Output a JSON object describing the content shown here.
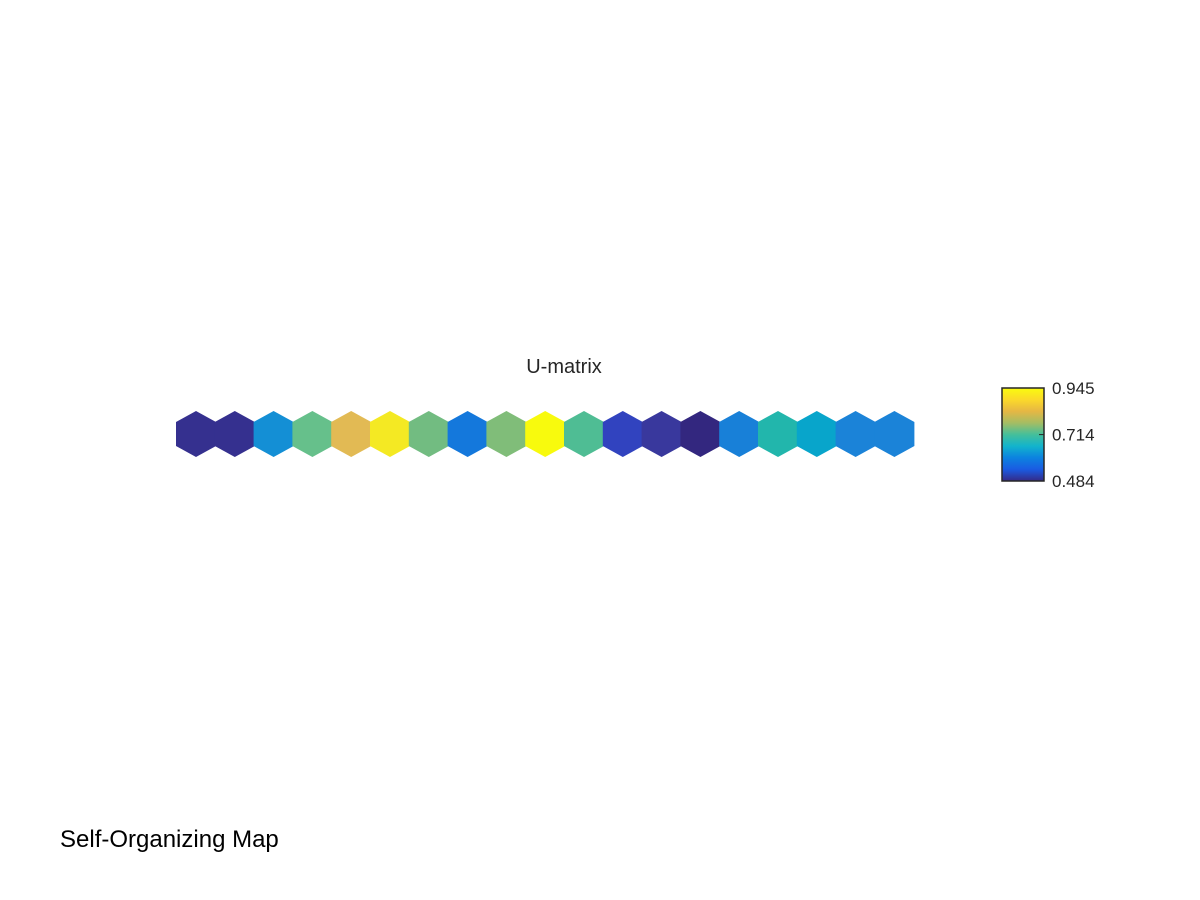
{
  "figure": {
    "caption": "Self-Organizing Map"
  },
  "chart_data": {
    "type": "heatmap",
    "layout": "hexagonal",
    "title": "U-matrix",
    "xlabel": "",
    "ylabel": "",
    "grid": false,
    "colormap": "parula",
    "values": [
      0.505,
      0.51,
      0.655,
      0.795,
      0.875,
      0.925,
      0.8,
      0.635,
      0.81,
      0.945,
      0.765,
      0.555,
      0.51,
      0.484,
      0.64,
      0.74,
      0.69,
      0.645,
      0.645
    ],
    "colors": [
      "#35308f",
      "#35308f",
      "#148fd5",
      "#66c08b",
      "#e2ba54",
      "#f4e923",
      "#72bc81",
      "#1478dc",
      "#80bd79",
      "#f8fa0d",
      "#4fbd94",
      "#3143bf",
      "#39389d",
      "#33277f",
      "#1880d8",
      "#22b6ac",
      "#08a5cb",
      "#1b83d8",
      "#1b83d8"
    ],
    "colorbar": {
      "min": 0.484,
      "max": 0.945,
      "ticks": [
        "0.945",
        "0.714",
        "0.484"
      ],
      "gradient": [
        "#352a87",
        "#1a5be2",
        "#0c82e0",
        "#12b4cc",
        "#45bf9a",
        "#a5bd63",
        "#e6b744",
        "#fbd92a",
        "#f9fb0e"
      ]
    }
  }
}
